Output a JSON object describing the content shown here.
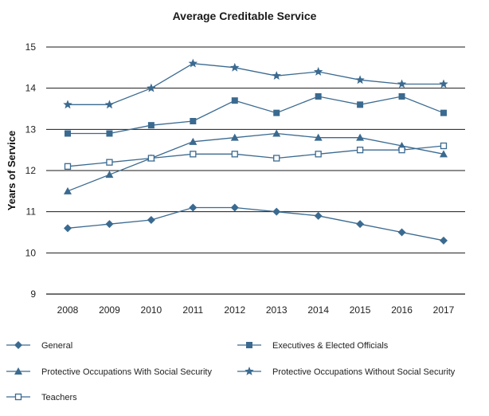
{
  "chart_data": {
    "type": "line",
    "title": "Average Creditable Service",
    "xlabel": "",
    "ylabel": "Years of Service",
    "x": [
      "2008",
      "2009",
      "2010",
      "2011",
      "2012",
      "2013",
      "2014",
      "2015",
      "2016",
      "2017"
    ],
    "ylim": [
      9,
      15
    ],
    "yticks": [
      9,
      10,
      11,
      12,
      13,
      14,
      15
    ],
    "grid": "horizontal",
    "legend_position": "bottom",
    "line_color": "#3b6a90",
    "series": [
      {
        "name": "General",
        "marker": "diamond-filled",
        "values": [
          10.6,
          10.7,
          10.8,
          11.1,
          11.1,
          11.0,
          10.9,
          10.7,
          10.5,
          10.3
        ]
      },
      {
        "name": "Executives & Elected Officials",
        "marker": "square-filled",
        "values": [
          12.9,
          12.9,
          13.1,
          13.2,
          13.7,
          13.4,
          13.8,
          13.6,
          13.8,
          13.4
        ]
      },
      {
        "name": "Protective Occupations With Social Security",
        "marker": "triangle-filled",
        "values": [
          11.5,
          11.9,
          12.3,
          12.7,
          12.8,
          12.9,
          12.8,
          12.8,
          12.6,
          12.4
        ]
      },
      {
        "name": "Protective Occupations Without Social Security",
        "marker": "star-filled",
        "values": [
          13.6,
          13.6,
          14.0,
          14.6,
          14.5,
          14.3,
          14.4,
          14.2,
          14.1,
          14.1
        ]
      },
      {
        "name": "Teachers",
        "marker": "square-open",
        "values": [
          12.1,
          12.2,
          12.3,
          12.4,
          12.4,
          12.3,
          12.4,
          12.5,
          12.5,
          12.6
        ]
      }
    ]
  }
}
